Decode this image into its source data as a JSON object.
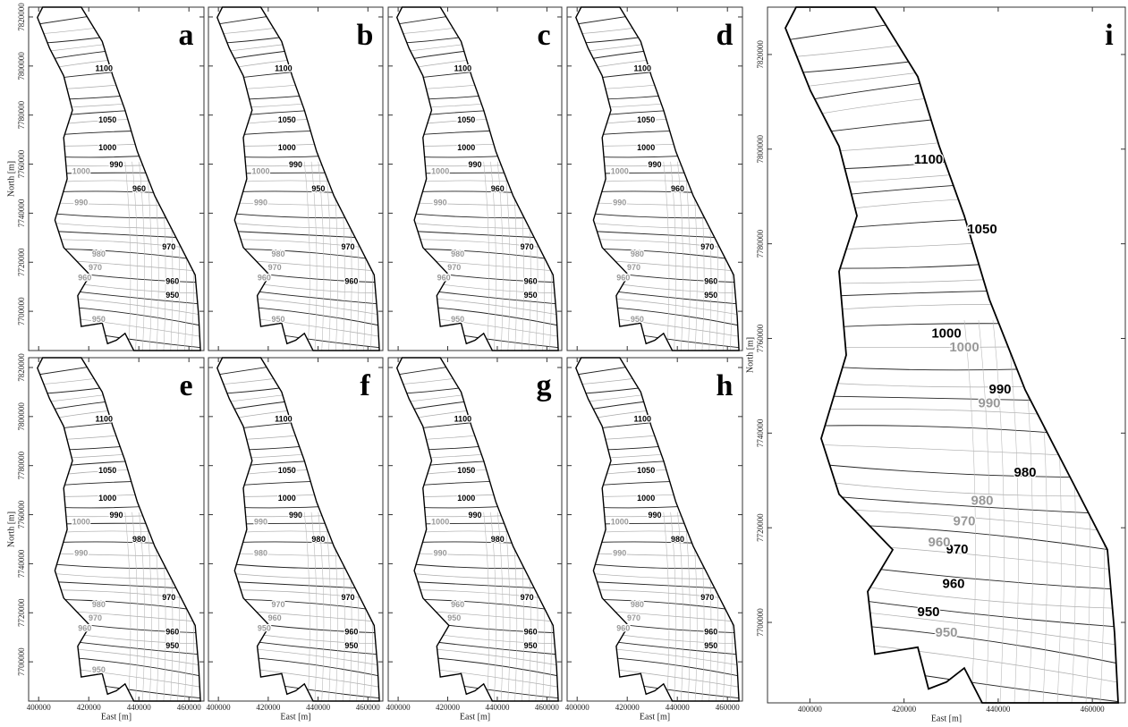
{
  "small_axes": {
    "xlim": [
      396000,
      466000
    ],
    "ylim": [
      7684000,
      7824000
    ],
    "xticks": [
      400000,
      420000,
      440000,
      460000
    ],
    "yticks": [
      7700000,
      7720000,
      7740000,
      7760000,
      7780000,
      7800000,
      7820000
    ],
    "x_label": "East [m]",
    "y_label": "North [m]"
  },
  "large_axes": {
    "xlim": [
      391000,
      467000
    ],
    "ylim": [
      7683000,
      7830000
    ],
    "xticks": [
      400000,
      420000,
      440000,
      460000
    ],
    "yticks": [
      7700000,
      7720000,
      7740000,
      7760000,
      7780000,
      7800000,
      7820000
    ],
    "x_label": "East [m]",
    "y_label": "North [m]"
  },
  "panels": [
    {
      "label": "a",
      "black_labels": [
        1100,
        1050,
        1000,
        990,
        960,
        970,
        960,
        950
      ],
      "gray_labels": [
        1000,
        990,
        980,
        970,
        960,
        950
      ]
    },
    {
      "label": "b",
      "black_labels": [
        1100,
        1050,
        1000,
        990,
        950,
        970,
        960
      ],
      "gray_labels": [
        1000,
        990,
        980,
        970,
        960,
        950
      ]
    },
    {
      "label": "c",
      "black_labels": [
        1100,
        1050,
        1000,
        990,
        960,
        970,
        960,
        950
      ],
      "gray_labels": [
        1000,
        990,
        980,
        970,
        960,
        950
      ]
    },
    {
      "label": "d",
      "black_labels": [
        1100,
        1050,
        1000,
        990,
        960,
        970,
        960,
        950
      ],
      "gray_labels": [
        1000,
        990,
        980,
        970,
        960,
        950
      ]
    },
    {
      "label": "e",
      "black_labels": [
        1100,
        1050,
        1000,
        990,
        980,
        970,
        960,
        950
      ],
      "gray_labels": [
        1000,
        990,
        980,
        970,
        960,
        950
      ]
    },
    {
      "label": "f",
      "black_labels": [
        1100,
        1050,
        1000,
        990,
        980,
        970,
        960,
        950
      ],
      "gray_labels": [
        990,
        980,
        970,
        960,
        950
      ]
    },
    {
      "label": "g",
      "black_labels": [
        1100,
        1050,
        1000,
        990,
        980,
        970,
        960,
        950
      ],
      "gray_labels": [
        1000,
        990,
        960,
        950
      ]
    },
    {
      "label": "h",
      "black_labels": [
        1100,
        1050,
        1000,
        990,
        980,
        970,
        960,
        950
      ],
      "gray_labels": [
        1000,
        990,
        980,
        970,
        960
      ]
    },
    {
      "label": "i",
      "black_labels": [
        1100,
        1050,
        1000,
        990,
        980,
        970,
        960,
        950
      ],
      "gray_labels": [
        1000,
        990,
        980,
        970,
        960,
        950
      ]
    }
  ]
}
